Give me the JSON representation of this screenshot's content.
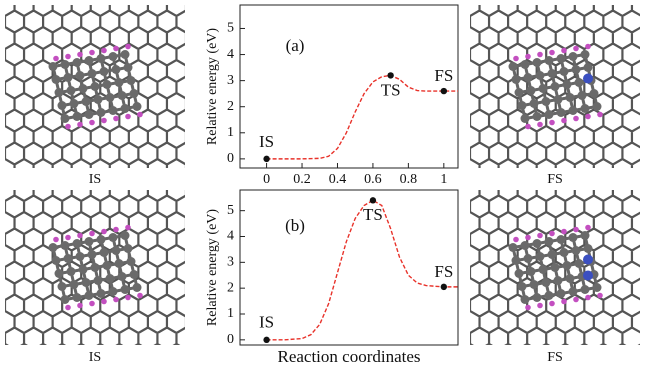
{
  "panels": [
    {
      "left": "IS",
      "right": "FS"
    },
    {
      "left": "IS",
      "right": "FS"
    }
  ],
  "chart_data": [
    {
      "type": "line",
      "panel_label": "(a)",
      "ylabel": "Relative energy (eV)",
      "xlim": [
        -0.15,
        1.08
      ],
      "ylim": [
        -0.35,
        5.9
      ],
      "xticks": [
        0,
        0.2,
        0.4,
        0.6,
        0.8,
        1
      ],
      "yticks": [
        0,
        1,
        2,
        3,
        4,
        5
      ],
      "curve": {
        "color": "#e8322a",
        "x": [
          0,
          0.1,
          0.2,
          0.3,
          0.35,
          0.4,
          0.45,
          0.5,
          0.55,
          0.6,
          0.65,
          0.7,
          0.75,
          0.8,
          0.85,
          0.9,
          1.0,
          1.08
        ],
        "values": [
          0,
          0,
          0,
          0.02,
          0.1,
          0.4,
          1.0,
          1.8,
          2.5,
          2.95,
          3.15,
          3.2,
          3.05,
          2.75,
          2.62,
          2.6,
          2.6,
          2.6
        ]
      },
      "points": {
        "color": "#111111",
        "x": [
          0,
          0.7,
          1
        ],
        "values": [
          0,
          3.2,
          2.6
        ],
        "labels": [
          "IS",
          "TS",
          "FS"
        ]
      }
    },
    {
      "type": "line",
      "panel_label": "(b)",
      "ylabel": "Relative energy (eV)",
      "xlabel": "Reaction coordinates",
      "xlim": [
        -0.15,
        1.08
      ],
      "ylim": [
        -0.2,
        5.8
      ],
      "yticks": [
        0,
        1,
        2,
        3,
        4,
        5
      ],
      "curve": {
        "color": "#e8322a",
        "x": [
          0,
          0.1,
          0.2,
          0.25,
          0.3,
          0.35,
          0.4,
          0.45,
          0.5,
          0.55,
          0.6,
          0.65,
          0.7,
          0.75,
          0.8,
          0.85,
          0.9,
          1.0,
          1.08
        ],
        "values": [
          0,
          0,
          0.05,
          0.2,
          0.6,
          1.4,
          2.6,
          3.8,
          4.7,
          5.2,
          5.4,
          5.2,
          4.3,
          3.2,
          2.5,
          2.2,
          2.1,
          2.05,
          2.05
        ]
      },
      "points": {
        "color": "#111111",
        "x": [
          0,
          0.6,
          1
        ],
        "values": [
          0,
          5.4,
          2.05
        ],
        "labels": [
          "IS",
          "TS",
          "FS"
        ]
      }
    }
  ]
}
